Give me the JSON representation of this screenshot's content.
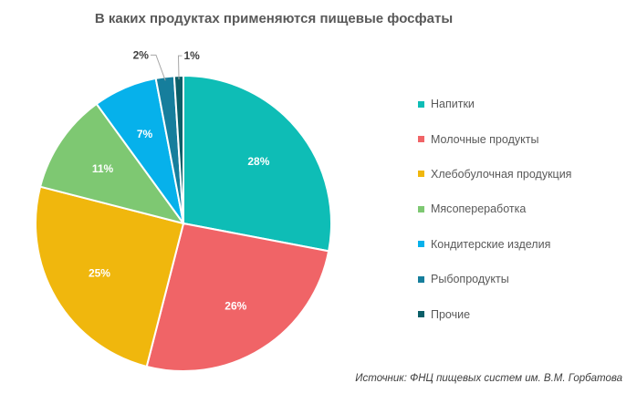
{
  "chart_data": {
    "type": "pie",
    "title": "В каких продуктах применяются пищевые фосфаты",
    "categories": [
      "Напитки",
      "Молочные продукты",
      "Хлебобулочная продукция",
      "Мясопереработка",
      "Кондитерские изделия",
      "Рыбопродукты",
      "Прочие"
    ],
    "values": [
      28,
      26,
      25,
      11,
      7,
      2,
      1
    ],
    "labels": [
      "28%",
      "26%",
      "25%",
      "11%",
      "7%",
      "2%",
      "1%"
    ],
    "colors": [
      "#0ebdb6",
      "#f06467",
      "#f0b70d",
      "#7ec872",
      "#06b1eb",
      "#167e9c",
      "#0b5f68"
    ],
    "legend_position": "right"
  },
  "source": "Источник: ФНЦ пищевых систем им. В.М. Горбатова"
}
